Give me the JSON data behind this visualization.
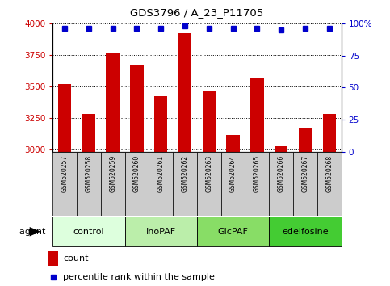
{
  "title": "GDS3796 / A_23_P11705",
  "samples": [
    "GSM520257",
    "GSM520258",
    "GSM520259",
    "GSM520260",
    "GSM520261",
    "GSM520262",
    "GSM520263",
    "GSM520264",
    "GSM520265",
    "GSM520266",
    "GSM520267",
    "GSM520268"
  ],
  "counts": [
    3520,
    3280,
    3760,
    3670,
    3420,
    3920,
    3460,
    3110,
    3560,
    3020,
    3170,
    3280
  ],
  "percentiles": [
    96,
    96,
    96,
    96,
    96,
    98,
    96,
    96,
    96,
    95,
    96,
    96
  ],
  "groups": [
    {
      "label": "control",
      "start": 0,
      "end": 3,
      "color": "#ddffdd"
    },
    {
      "label": "InoPAF",
      "start": 3,
      "end": 6,
      "color": "#bbeeaa"
    },
    {
      "label": "GlcPAF",
      "start": 6,
      "end": 9,
      "color": "#88dd66"
    },
    {
      "label": "edelfosine",
      "start": 9,
      "end": 12,
      "color": "#44cc33"
    }
  ],
  "ylim_left": [
    2980,
    4000
  ],
  "ylim_right": [
    0,
    100
  ],
  "bar_color": "#cc0000",
  "dot_color": "#0000cc",
  "bg_color": "#ffffff",
  "left_tick_color": "#cc0000",
  "right_tick_color": "#0000cc",
  "sample_bg": "#cccccc"
}
